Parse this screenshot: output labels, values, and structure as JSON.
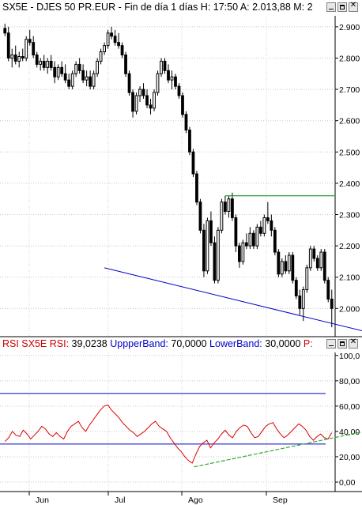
{
  "price_header": {
    "text": "SX5E - DJES 50 PR.EUR - Fin de día 1 días  H: 17:50  A: 2.013,88  M: 2",
    "buttons": [
      "minimize-icon",
      "maximize-icon",
      "close-icon"
    ]
  },
  "rsi_header": {
    "name_label": "RSI  SX5E  RSI:",
    "rsi_value": "39,0238",
    "upper_label": "UppperBand:",
    "upper_value": "70,0000",
    "lower_label": "LowerBand:",
    "lower_value": "30,0000",
    "trailing": "P:"
  },
  "colors": {
    "up_candle": "#ffffff",
    "down_candle": "#000000",
    "rsi_line": "#dd0000",
    "band_line": "#0000cc",
    "support_trend": "#0000cc",
    "resistance_line": "#008800",
    "rsi_trend": "#33aa33",
    "header_red": "#cc0000",
    "header_blue": "#0000cc"
  },
  "chart_data": [
    {
      "type": "candlestick",
      "y_ticks": [
        "2.900",
        "2.800",
        "2.700",
        "2.600",
        "2.500",
        "2.400",
        "2.300",
        "2.200",
        "2.100",
        "2.000"
      ],
      "ylim": [
        1920,
        2930
      ],
      "x_labels": [
        "Jun",
        "Jul",
        "Ago",
        "Sep"
      ],
      "ohlc": [
        [
          2895,
          2910,
          2870,
          2880
        ],
        [
          2880,
          2900,
          2790,
          2800
        ],
        [
          2800,
          2830,
          2770,
          2810
        ],
        [
          2810,
          2840,
          2780,
          2790
        ],
        [
          2790,
          2820,
          2770,
          2805
        ],
        [
          2805,
          2830,
          2790,
          2800
        ],
        [
          2800,
          2870,
          2790,
          2860
        ],
        [
          2860,
          2890,
          2840,
          2850
        ],
        [
          2850,
          2870,
          2800,
          2810
        ],
        [
          2810,
          2820,
          2770,
          2780
        ],
        [
          2780,
          2800,
          2760,
          2790
        ],
        [
          2790,
          2810,
          2760,
          2770
        ],
        [
          2770,
          2800,
          2750,
          2790
        ],
        [
          2790,
          2810,
          2760,
          2770
        ],
        [
          2770,
          2790,
          2720,
          2740
        ],
        [
          2740,
          2780,
          2730,
          2770
        ],
        [
          2770,
          2790,
          2740,
          2750
        ],
        [
          2750,
          2780,
          2720,
          2730
        ],
        [
          2730,
          2750,
          2700,
          2710
        ],
        [
          2710,
          2760,
          2700,
          2750
        ],
        [
          2750,
          2790,
          2740,
          2780
        ],
        [
          2780,
          2800,
          2750,
          2760
        ],
        [
          2760,
          2780,
          2720,
          2730
        ],
        [
          2730,
          2760,
          2710,
          2740
        ],
        [
          2740,
          2760,
          2700,
          2710
        ],
        [
          2710,
          2760,
          2700,
          2750
        ],
        [
          2750,
          2800,
          2740,
          2790
        ],
        [
          2790,
          2830,
          2780,
          2820
        ],
        [
          2820,
          2850,
          2810,
          2840
        ],
        [
          2840,
          2890,
          2830,
          2880
        ],
        [
          2880,
          2900,
          2860,
          2870
        ],
        [
          2870,
          2890,
          2840,
          2850
        ],
        [
          2850,
          2880,
          2830,
          2840
        ],
        [
          2840,
          2850,
          2800,
          2810
        ],
        [
          2810,
          2820,
          2740,
          2750
        ],
        [
          2750,
          2760,
          2680,
          2690
        ],
        [
          2690,
          2700,
          2610,
          2630
        ],
        [
          2630,
          2690,
          2620,
          2680
        ],
        [
          2680,
          2710,
          2660,
          2700
        ],
        [
          2700,
          2720,
          2670,
          2680
        ],
        [
          2680,
          2700,
          2640,
          2650
        ],
        [
          2650,
          2670,
          2620,
          2640
        ],
        [
          2640,
          2700,
          2630,
          2690
        ],
        [
          2690,
          2760,
          2680,
          2750
        ],
        [
          2750,
          2800,
          2740,
          2790
        ],
        [
          2790,
          2800,
          2750,
          2760
        ],
        [
          2760,
          2780,
          2720,
          2730
        ],
        [
          2730,
          2760,
          2700,
          2740
        ],
        [
          2740,
          2750,
          2700,
          2710
        ],
        [
          2710,
          2720,
          2670,
          2680
        ],
        [
          2680,
          2690,
          2610,
          2620
        ],
        [
          2620,
          2630,
          2560,
          2570
        ],
        [
          2570,
          2580,
          2490,
          2500
        ],
        [
          2500,
          2510,
          2420,
          2430
        ],
        [
          2430,
          2440,
          2330,
          2340
        ],
        [
          2340,
          2350,
          2240,
          2250
        ],
        [
          2250,
          2270,
          2100,
          2120
        ],
        [
          2120,
          2290,
          2110,
          2280
        ],
        [
          2280,
          2310,
          2200,
          2210
        ],
        [
          2210,
          2230,
          2080,
          2090
        ],
        [
          2090,
          2260,
          2080,
          2250
        ],
        [
          2250,
          2350,
          2240,
          2340
        ],
        [
          2340,
          2360,
          2300,
          2310
        ],
        [
          2310,
          2360,
          2290,
          2350
        ],
        [
          2350,
          2370,
          2280,
          2290
        ],
        [
          2290,
          2300,
          2180,
          2200
        ],
        [
          2200,
          2210,
          2130,
          2150
        ],
        [
          2150,
          2220,
          2140,
          2210
        ],
        [
          2210,
          2240,
          2190,
          2200
        ],
        [
          2200,
          2260,
          2190,
          2240
        ],
        [
          2240,
          2250,
          2190,
          2200
        ],
        [
          2200,
          2270,
          2190,
          2260
        ],
        [
          2260,
          2280,
          2230,
          2240
        ],
        [
          2240,
          2300,
          2230,
          2290
        ],
        [
          2290,
          2340,
          2270,
          2280
        ],
        [
          2280,
          2300,
          2230,
          2250
        ],
        [
          2250,
          2260,
          2170,
          2180
        ],
        [
          2180,
          2190,
          2100,
          2110
        ],
        [
          2110,
          2160,
          2100,
          2150
        ],
        [
          2150,
          2170,
          2110,
          2120
        ],
        [
          2120,
          2180,
          2110,
          2170
        ],
        [
          2170,
          2180,
          2080,
          2090
        ],
        [
          2090,
          2100,
          2030,
          2040
        ],
        [
          2040,
          2060,
          1980,
          2000
        ],
        [
          2000,
          2070,
          1960,
          2060
        ],
        [
          2060,
          2140,
          2050,
          2130
        ],
        [
          2130,
          2200,
          2120,
          2190
        ],
        [
          2190,
          2200,
          2150,
          2160
        ],
        [
          2160,
          2170,
          2120,
          2130
        ],
        [
          2130,
          2190,
          2120,
          2180
        ],
        [
          2180,
          2190,
          2080,
          2090
        ],
        [
          2090,
          2100,
          2020,
          2030
        ],
        [
          2030,
          2060,
          1940,
          2000
        ]
      ],
      "support_trendline": [
        [
          28,
          2130
        ],
        [
          100,
          1928
        ]
      ],
      "resistance_line": [
        [
          62,
          2360
        ],
        [
          109,
          2360
        ]
      ]
    },
    {
      "type": "line",
      "series": [
        {
          "values": [
            32,
            35,
            40,
            37,
            36,
            41,
            38,
            34,
            37,
            40,
            44,
            42,
            38,
            36,
            39,
            36,
            34,
            40,
            44,
            46,
            48,
            43,
            40,
            45,
            49,
            53,
            57,
            60,
            61,
            57,
            54,
            51,
            47,
            44,
            41,
            39,
            36,
            38,
            40,
            43,
            46,
            48,
            44,
            42,
            40,
            35,
            31,
            27,
            24,
            20,
            17,
            15,
            22,
            28,
            31,
            33,
            27,
            31,
            34,
            38,
            41,
            37,
            35,
            40,
            43,
            45,
            44,
            39,
            35,
            36,
            40,
            44,
            46,
            47,
            42,
            38,
            35,
            37,
            40,
            43,
            46,
            44,
            41,
            36,
            33,
            36,
            38,
            35,
            34,
            39
          ]
        }
      ],
      "y_ticks": [
        "100,0",
        "80,00",
        "60,00",
        "40,00",
        "20,00",
        "0,00"
      ],
      "ylim": [
        -5,
        103
      ],
      "bands": [
        70,
        30
      ],
      "rsi_trendline": [
        [
          52,
          12
        ],
        [
          100,
          41
        ]
      ]
    }
  ]
}
